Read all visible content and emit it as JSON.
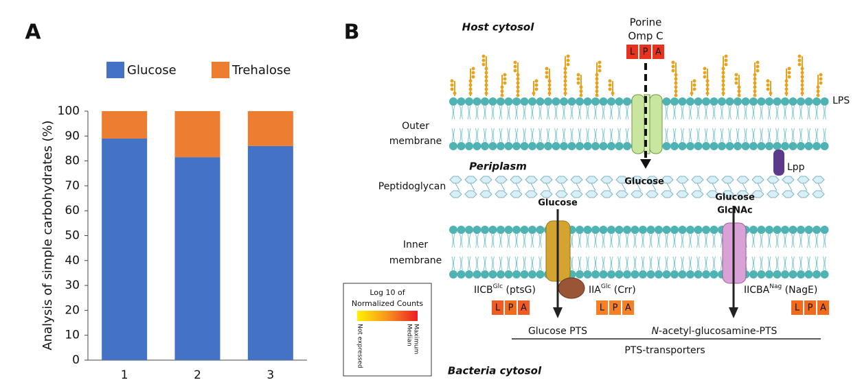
{
  "panel_labels": [
    "A",
    "B"
  ],
  "chart_data": {
    "type": "stacked-bar",
    "y_label": "Analysis of simple carbohydrates (%)",
    "categories": [
      "1",
      "2",
      "3"
    ],
    "series": [
      {
        "name": "Glucose",
        "color": "#4472c4",
        "values": [
          89,
          81.5,
          86
        ]
      },
      {
        "name": "Trehalose",
        "color": "#ed7d31",
        "values": [
          11,
          18.5,
          14
        ]
      }
    ],
    "ylim": [
      0,
      100
    ],
    "yticks": [
      0,
      10,
      20,
      30,
      40,
      50,
      60,
      70,
      80,
      90,
      100
    ],
    "legend": "top"
  },
  "diagram": {
    "host": "Host cytosol",
    "porin": {
      "name": [
        "Porine",
        "Omp C"
      ],
      "lpa": [
        "L",
        "P",
        "A"
      ]
    },
    "lps": "LPS",
    "outer": [
      "Outer",
      "membrane"
    ],
    "periplasm": "Periplasm",
    "lpp": "Lpp",
    "glucose_periplasm": "Glucose",
    "peptidoglycan": "Peptidoglycan",
    "glucose_in": "Glucose",
    "glcnac_in": [
      "Glucose",
      "GlcNAc"
    ],
    "inner": [
      "Inner",
      "membrane"
    ],
    "ptsg": {
      "name": "IICB",
      "sup": "Glc",
      "rest": " (ptsG)",
      "lpa": [
        "L",
        "P",
        "A"
      ]
    },
    "crr": {
      "name": "IIA",
      "sup": "Glc",
      "rest": " (Crr)",
      "lpa": [
        "L",
        "P",
        "A"
      ]
    },
    "nage": {
      "name": "IICBA",
      "sup": "Nag",
      "rest": " (NagE)",
      "lpa": [
        "L",
        "P",
        "A"
      ]
    },
    "glucose_pts": "Glucose PTS",
    "nag_pts": {
      "italic": "N",
      "rest": "-acetyl-glucosamine-PTS"
    },
    "pts": "PTS-transporters",
    "bacteria": "Bacteria cytosol",
    "legend": {
      "title": [
        "Log 10 of",
        "Normalized Counts"
      ],
      "low": "Not expressed",
      "high": [
        "Maximum",
        "Median"
      ]
    }
  }
}
